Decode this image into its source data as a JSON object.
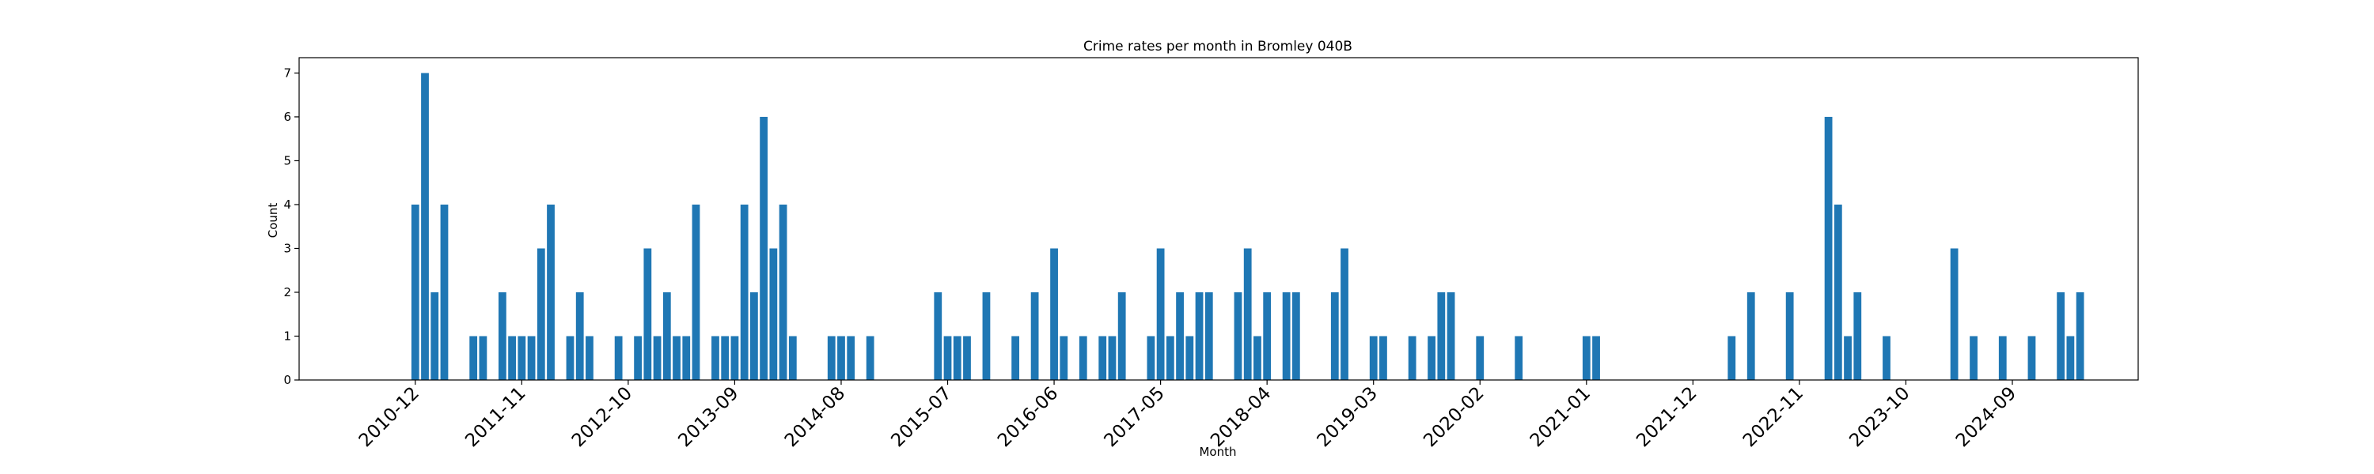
{
  "colors": {
    "bar": "#1f77b4",
    "axis": "#000000",
    "background": "#ffffff"
  },
  "chart_data": {
    "type": "bar",
    "title": "Crime rates per month in Bromley 040B",
    "xlabel": "Month",
    "ylabel": "Count",
    "ylim": [
      0,
      7.35
    ],
    "yticks": [
      0,
      1,
      2,
      3,
      4,
      5,
      6,
      7
    ],
    "grid": false,
    "legend": "none",
    "x_start": "2010-12",
    "x_end": "2025-09",
    "xlim": [
      "2009-12",
      "2025-10"
    ],
    "xticks": [
      "2010-12",
      "2011-11",
      "2012-10",
      "2013-09",
      "2014-08",
      "2015-07",
      "2016-06",
      "2017-05",
      "2018-04",
      "2019-03",
      "2020-02",
      "2021-01",
      "2021-12",
      "2022-11",
      "2023-10",
      "2024-09"
    ],
    "bars": [
      {
        "x": "2010-12",
        "y": 4
      },
      {
        "x": "2011-01",
        "y": 7
      },
      {
        "x": "2011-02",
        "y": 2
      },
      {
        "x": "2011-03",
        "y": 4
      },
      {
        "x": "2011-06",
        "y": 1
      },
      {
        "x": "2011-07",
        "y": 1
      },
      {
        "x": "2011-09",
        "y": 2
      },
      {
        "x": "2011-10",
        "y": 1
      },
      {
        "x": "2011-11",
        "y": 1
      },
      {
        "x": "2011-12",
        "y": 1
      },
      {
        "x": "2012-01",
        "y": 3
      },
      {
        "x": "2012-02",
        "y": 4
      },
      {
        "x": "2012-04",
        "y": 1
      },
      {
        "x": "2012-05",
        "y": 2
      },
      {
        "x": "2012-06",
        "y": 1
      },
      {
        "x": "2012-09",
        "y": 1
      },
      {
        "x": "2012-11",
        "y": 1
      },
      {
        "x": "2012-12",
        "y": 3
      },
      {
        "x": "2013-01",
        "y": 1
      },
      {
        "x": "2013-02",
        "y": 2
      },
      {
        "x": "2013-03",
        "y": 1
      },
      {
        "x": "2013-04",
        "y": 1
      },
      {
        "x": "2013-05",
        "y": 4
      },
      {
        "x": "2013-07",
        "y": 1
      },
      {
        "x": "2013-08",
        "y": 1
      },
      {
        "x": "2013-09",
        "y": 1
      },
      {
        "x": "2013-10",
        "y": 4
      },
      {
        "x": "2013-11",
        "y": 2
      },
      {
        "x": "2013-12",
        "y": 6
      },
      {
        "x": "2014-01",
        "y": 3
      },
      {
        "x": "2014-02",
        "y": 4
      },
      {
        "x": "2014-03",
        "y": 1
      },
      {
        "x": "2014-07",
        "y": 1
      },
      {
        "x": "2014-08",
        "y": 1
      },
      {
        "x": "2014-09",
        "y": 1
      },
      {
        "x": "2014-11",
        "y": 1
      },
      {
        "x": "2015-06",
        "y": 2
      },
      {
        "x": "2015-07",
        "y": 1
      },
      {
        "x": "2015-08",
        "y": 1
      },
      {
        "x": "2015-09",
        "y": 1
      },
      {
        "x": "2015-11",
        "y": 2
      },
      {
        "x": "2016-02",
        "y": 1
      },
      {
        "x": "2016-04",
        "y": 2
      },
      {
        "x": "2016-06",
        "y": 3
      },
      {
        "x": "2016-07",
        "y": 1
      },
      {
        "x": "2016-09",
        "y": 1
      },
      {
        "x": "2016-11",
        "y": 1
      },
      {
        "x": "2016-12",
        "y": 1
      },
      {
        "x": "2017-01",
        "y": 2
      },
      {
        "x": "2017-04",
        "y": 1
      },
      {
        "x": "2017-05",
        "y": 3
      },
      {
        "x": "2017-06",
        "y": 1
      },
      {
        "x": "2017-07",
        "y": 2
      },
      {
        "x": "2017-08",
        "y": 1
      },
      {
        "x": "2017-09",
        "y": 2
      },
      {
        "x": "2017-10",
        "y": 2
      },
      {
        "x": "2018-01",
        "y": 2
      },
      {
        "x": "2018-02",
        "y": 3
      },
      {
        "x": "2018-03",
        "y": 1
      },
      {
        "x": "2018-04",
        "y": 2
      },
      {
        "x": "2018-06",
        "y": 2
      },
      {
        "x": "2018-07",
        "y": 2
      },
      {
        "x": "2018-11",
        "y": 2
      },
      {
        "x": "2018-12",
        "y": 3
      },
      {
        "x": "2019-03",
        "y": 1
      },
      {
        "x": "2019-04",
        "y": 1
      },
      {
        "x": "2019-07",
        "y": 1
      },
      {
        "x": "2019-09",
        "y": 1
      },
      {
        "x": "2019-10",
        "y": 2
      },
      {
        "x": "2019-11",
        "y": 2
      },
      {
        "x": "2020-02",
        "y": 1
      },
      {
        "x": "2020-06",
        "y": 1
      },
      {
        "x": "2021-01",
        "y": 1
      },
      {
        "x": "2021-02",
        "y": 1
      },
      {
        "x": "2022-04",
        "y": 1
      },
      {
        "x": "2022-06",
        "y": 2
      },
      {
        "x": "2022-10",
        "y": 2
      },
      {
        "x": "2023-02",
        "y": 6
      },
      {
        "x": "2023-03",
        "y": 4
      },
      {
        "x": "2023-04",
        "y": 1
      },
      {
        "x": "2023-05",
        "y": 2
      },
      {
        "x": "2023-08",
        "y": 1
      },
      {
        "x": "2024-03",
        "y": 3
      },
      {
        "x": "2024-05",
        "y": 1
      },
      {
        "x": "2024-08",
        "y": 1
      },
      {
        "x": "2024-11",
        "y": 1
      },
      {
        "x": "2025-02",
        "y": 2
      },
      {
        "x": "2025-03",
        "y": 1
      },
      {
        "x": "2025-04",
        "y": 2
      }
    ]
  }
}
